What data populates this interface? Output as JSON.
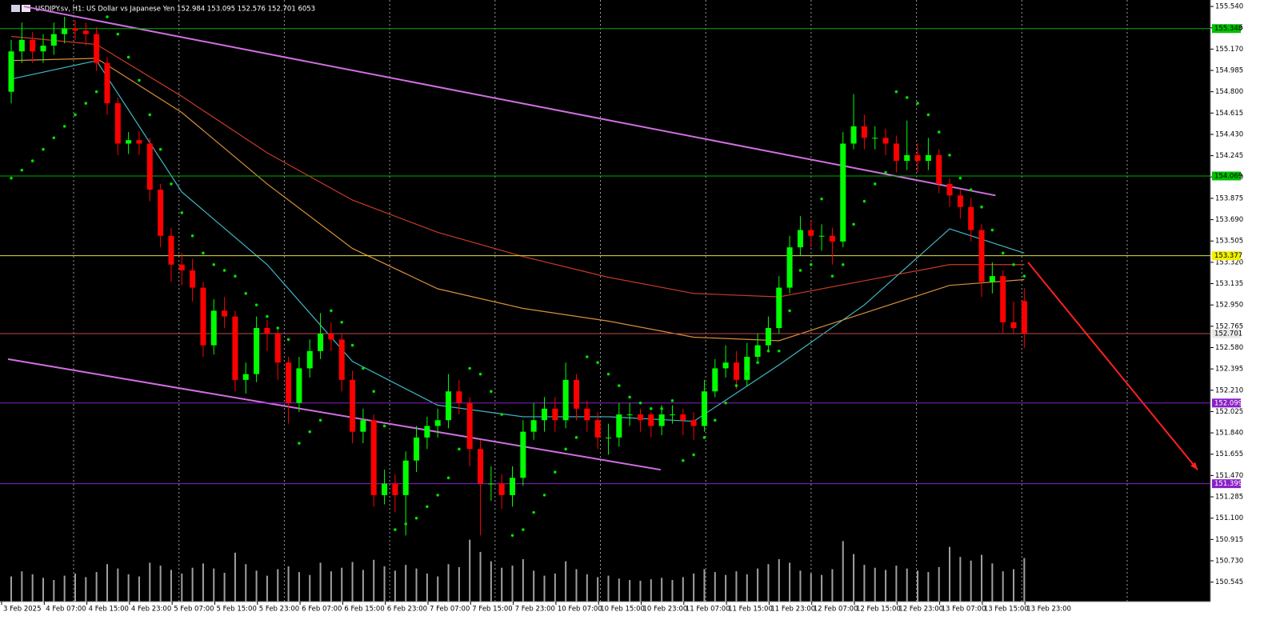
{
  "chart_data": {
    "type": "candlestick",
    "header": "USDJPY.sv, H1:  US Dollar vs Japanese Yen  152.984 153.095 152.576 152.701 6053",
    "bull_color": "#00ff00",
    "bear_color": "#ff0000",
    "ylim": [
      150.376,
      155.596
    ],
    "yticks": [
      {
        "value": 155.54,
        "label": "155.540"
      },
      155.355,
      {
        "value": 155.17,
        "label": "155.170"
      },
      154.985,
      {
        "value": 154.8,
        "label": "154.800"
      },
      154.615,
      {
        "value": 154.43,
        "label": "154.430"
      },
      154.245,
      {
        "value": 154.06,
        "label": "154.060"
      },
      153.875,
      {
        "value": 153.69,
        "label": "153.690"
      },
      153.505,
      {
        "value": 153.32,
        "label": "153.320"
      },
      153.135,
      {
        "value": 152.95,
        "label": "152.950"
      },
      152.765,
      {
        "value": 152.58,
        "label": "152.580"
      },
      152.395,
      {
        "value": 152.21,
        "label": "152.210"
      },
      152.025,
      {
        "value": 151.84,
        "label": "151.840"
      },
      151.655,
      {
        "value": 151.47,
        "label": "151.470"
      },
      151.285,
      {
        "value": 151.1,
        "label": "151.100"
      },
      150.915,
      {
        "value": 150.73,
        "label": "150.730"
      },
      150.545
    ],
    "time_labels": [
      "3 Feb 2025",
      "4 Feb 07:00",
      "4 Feb 15:00",
      "4 Feb 23:00",
      "5 Feb 07:00",
      "5 Feb 15:00",
      "5 Feb 23:00",
      "6 Feb 07:00",
      "6 Feb 15:00",
      "6 Feb 23:00",
      "7 Feb 07:00",
      "7 Feb 15:00",
      "7 Feb 23:00",
      "10 Feb 07:00",
      "10 Feb 15:00",
      "10 Feb 23:00",
      "11 Feb 07:00",
      "11 Feb 15:00",
      "11 Feb 23:00",
      "12 Feb 07:00",
      "12 Feb 15:00",
      "12 Feb 23:00",
      "13 Feb 07:00",
      "13 Feb 15:00",
      "13 Feb 23:00"
    ],
    "open": [
      154.8,
      155.15,
      155.25,
      155.15,
      155.2,
      155.3,
      155.35,
      155.33,
      155.3,
      155.05,
      154.7,
      154.35,
      154.38,
      154.35,
      153.95,
      153.55,
      153.3,
      153.25,
      153.1,
      152.6,
      152.9,
      152.85,
      152.3,
      152.35,
      152.75,
      152.7,
      152.45,
      152.1,
      152.4,
      152.55,
      152.7,
      152.65,
      152.3,
      151.85,
      151.95,
      151.3,
      151.4,
      151.3,
      151.6,
      151.8,
      151.9,
      151.95,
      152.2,
      152.1,
      151.7,
      151.4,
      151.4,
      151.3,
      151.45,
      151.85,
      151.95,
      152.05,
      151.95,
      152.3,
      152.05,
      151.95,
      151.8,
      151.8,
      152.0,
      152.0,
      152.0,
      151.9,
      152.0,
      152.0,
      151.95,
      151.9,
      152.2,
      152.4,
      152.45,
      152.3,
      152.5,
      152.6,
      152.75,
      153.1,
      153.45,
      153.6,
      153.55,
      153.55,
      153.5,
      154.35,
      154.5,
      154.4,
      154.4,
      154.35,
      154.2,
      154.25,
      154.2,
      154.25,
      154.0,
      153.9,
      153.8,
      153.6,
      153.15,
      153.2,
      152.8,
      152.984
    ],
    "high": [
      155.25,
      155.4,
      155.32,
      155.3,
      155.4,
      155.45,
      155.42,
      155.4,
      155.36,
      155.1,
      154.75,
      154.45,
      154.46,
      154.4,
      154.0,
      153.62,
      153.4,
      153.35,
      153.15,
      153.0,
      153.02,
      152.9,
      152.45,
      152.85,
      152.82,
      152.76,
      152.5,
      152.5,
      152.65,
      152.88,
      152.8,
      152.7,
      152.38,
      152.05,
      152.0,
      151.52,
      151.48,
      151.68,
      151.9,
      151.98,
      152.05,
      152.35,
      152.3,
      152.15,
      151.78,
      151.55,
      151.48,
      151.55,
      151.95,
      152.1,
      152.15,
      152.15,
      152.45,
      152.35,
      152.12,
      152.02,
      151.92,
      152.1,
      152.1,
      152.05,
      152.02,
      152.08,
      152.08,
      152.05,
      152.02,
      152.3,
      152.48,
      152.6,
      152.55,
      152.62,
      152.7,
      152.85,
      153.2,
      153.55,
      153.72,
      153.68,
      153.65,
      153.62,
      154.45,
      154.78,
      154.6,
      154.5,
      154.48,
      154.42,
      154.55,
      154.35,
      154.4,
      154.3,
      154.05,
      153.95,
      153.88,
      153.65,
      153.32,
      153.25,
      152.98,
      153.095
    ],
    "low": [
      154.7,
      155.05,
      155.05,
      155.05,
      155.12,
      155.22,
      155.25,
      155.2,
      154.98,
      154.6,
      154.25,
      154.26,
      154.25,
      153.85,
      153.45,
      153.15,
      153.12,
      152.98,
      152.5,
      152.52,
      152.75,
      152.2,
      152.18,
      152.28,
      152.55,
      152.3,
      151.92,
      152.02,
      152.32,
      152.48,
      152.55,
      152.2,
      151.75,
      151.75,
      151.2,
      151.22,
      151.15,
      150.95,
      151.5,
      151.7,
      151.8,
      151.88,
      152.0,
      151.55,
      150.95,
      151.25,
      151.18,
      151.2,
      151.38,
      151.78,
      151.85,
      151.85,
      151.88,
      151.95,
      151.85,
      151.7,
      151.65,
      151.72,
      151.9,
      151.85,
      151.8,
      151.82,
      151.92,
      151.82,
      151.78,
      151.85,
      152.15,
      152.32,
      152.22,
      152.25,
      152.45,
      152.55,
      152.7,
      153.05,
      153.38,
      153.45,
      153.42,
      153.3,
      153.45,
      154.3,
      154.3,
      154.3,
      154.25,
      154.1,
      154.12,
      154.1,
      154.12,
      153.92,
      153.8,
      153.7,
      153.5,
      153.02,
      153.05,
      152.7,
      152.7,
      152.576
    ],
    "close": [
      155.15,
      155.25,
      155.15,
      155.2,
      155.3,
      155.35,
      155.33,
      155.3,
      155.05,
      154.7,
      154.35,
      154.38,
      154.35,
      153.95,
      153.55,
      153.3,
      153.25,
      153.1,
      152.6,
      152.9,
      152.85,
      152.3,
      152.35,
      152.75,
      152.7,
      152.45,
      152.1,
      152.4,
      152.55,
      152.7,
      152.65,
      152.3,
      151.85,
      151.95,
      151.3,
      151.4,
      151.3,
      151.6,
      151.8,
      151.9,
      151.95,
      152.2,
      152.1,
      151.7,
      151.4,
      151.4,
      151.3,
      151.45,
      151.85,
      151.95,
      152.05,
      151.95,
      152.3,
      152.05,
      151.95,
      151.8,
      151.8,
      152.0,
      152.0,
      151.95,
      151.9,
      152.0,
      152.0,
      151.95,
      151.9,
      152.2,
      152.4,
      152.45,
      152.3,
      152.5,
      152.6,
      152.75,
      153.1,
      153.45,
      153.6,
      153.55,
      153.55,
      153.5,
      154.35,
      154.5,
      154.4,
      154.4,
      154.35,
      154.2,
      154.25,
      154.2,
      154.25,
      154.0,
      153.9,
      153.8,
      153.6,
      153.15,
      153.2,
      152.8,
      152.75,
      152.701
    ],
    "volume": [
      3500,
      4200,
      3800,
      3300,
      3000,
      3600,
      3900,
      3400,
      4100,
      5200,
      4600,
      3800,
      3500,
      5400,
      5000,
      4400,
      3900,
      4700,
      5300,
      4600,
      4000,
      6800,
      5200,
      4300,
      3600,
      4500,
      4900,
      4100,
      3700,
      5400,
      4200,
      4700,
      5500,
      4400,
      5800,
      4900,
      4300,
      5100,
      4600,
      3900,
      3500,
      5200,
      4800,
      8600,
      6900,
      5600,
      4700,
      5000,
      5900,
      4300,
      3600,
      3900,
      5600,
      4500,
      3800,
      3400,
      3600,
      3200,
      3000,
      2900,
      3100,
      3300,
      3000,
      3400,
      3900,
      4500,
      4100,
      3700,
      4200,
      3800,
      4600,
      5200,
      5900,
      5400,
      4300,
      3900,
      3700,
      4500,
      8400,
      6600,
      5100,
      4700,
      4400,
      5000,
      4600,
      4300,
      4100,
      4800,
      7600,
      6200,
      5700,
      6500,
      5300,
      4200,
      4500,
      6053
    ],
    "volume_color": "#a0a0a0",
    "sar": {
      "color": "#00e000",
      "values": [
        154.05,
        154.12,
        154.2,
        154.3,
        154.4,
        154.5,
        154.6,
        154.7,
        154.8,
        155.45,
        155.3,
        155.1,
        154.9,
        154.6,
        154.3,
        154.0,
        153.75,
        153.55,
        153.4,
        153.3,
        153.25,
        153.2,
        153.05,
        152.95,
        152.85,
        152.75,
        152.65,
        151.75,
        151.85,
        151.95,
        152.9,
        152.8,
        152.6,
        152.4,
        152.2,
        151.9,
        151.0,
        151.05,
        151.1,
        151.2,
        151.3,
        151.45,
        151.7,
        152.4,
        152.35,
        152.2,
        152.0,
        150.95,
        151.0,
        151.15,
        151.3,
        151.5,
        151.7,
        151.8,
        152.5,
        152.45,
        152.35,
        152.25,
        152.15,
        152.1,
        152.05,
        152.05,
        152.12,
        151.6,
        151.65,
        151.8,
        151.95,
        152.1,
        152.25,
        152.35,
        152.45,
        152.55,
        152.55,
        152.9,
        153.25,
        153.3,
        153.87,
        153.2,
        153.3,
        153.65,
        153.85,
        154.0,
        154.1,
        154.8,
        154.75,
        154.7,
        154.6,
        154.45,
        154.25,
        154.05,
        153.95,
        153.8,
        153.6,
        153.4,
        153.3,
        153.2
      ]
    },
    "moving_averages": [
      {
        "color": "#3fb8c8",
        "index": [
          0,
          8,
          16,
          24,
          32,
          40,
          48,
          56,
          64,
          72,
          80,
          88,
          95
        ],
        "values": [
          154.91,
          155.07,
          153.93,
          153.3,
          152.46,
          152.08,
          151.98,
          151.98,
          151.94,
          152.43,
          152.95,
          153.61,
          153.4
        ]
      },
      {
        "color": "#c83a28",
        "index": [
          0,
          8,
          16,
          24,
          32,
          40,
          48,
          56,
          64,
          72,
          80,
          88,
          95
        ],
        "values": [
          155.28,
          155.21,
          154.76,
          154.27,
          153.86,
          153.58,
          153.37,
          153.19,
          153.05,
          153.02,
          153.16,
          153.3,
          153.3
        ]
      },
      {
        "color": "#d8903a",
        "index": [
          0,
          8,
          16,
          24,
          32,
          40,
          48,
          56,
          64,
          72,
          80,
          88,
          95
        ],
        "values": [
          155.07,
          155.09,
          154.62,
          154.0,
          153.44,
          153.09,
          152.92,
          152.81,
          152.67,
          152.64,
          152.88,
          153.12,
          153.17
        ]
      }
    ],
    "trendlines": [
      {
        "color": "#d070e0",
        "index": [
          1.2,
          92.3
        ],
        "values": [
          155.54,
          153.9
        ]
      },
      {
        "color": "#d070e0",
        "index": [
          -0.3,
          60.9
        ],
        "values": [
          152.48,
          151.52
        ]
      },
      {
        "color": "#ff2020",
        "index": [
          95.35,
          111.25
        ],
        "values": [
          153.32,
          151.52
        ],
        "arrow": true
      }
    ],
    "levels": [
      {
        "value": 155.348,
        "color": "#00b000",
        "label_bg": "#00c000",
        "label_fg": "#000000"
      },
      {
        "value": 154.069,
        "color": "#00b000",
        "label_bg": "#00c000",
        "label_fg": "#000000"
      },
      {
        "value": 153.377,
        "color": "#e0e040",
        "label_bg": "#f0f000",
        "label_fg": "#000000"
      },
      {
        "value": 152.701,
        "color": "#c04848",
        "label_bg": "#e8e8e8",
        "label_fg": "#000000"
      },
      {
        "value": 152.099,
        "color": "#8a20c8",
        "label_bg": "#8a20c8",
        "label_fg": "#ffffff"
      },
      {
        "value": 151.399,
        "color": "#8a20c8",
        "label_bg": "#8a20c8",
        "label_fg": "#ffffff"
      }
    ]
  }
}
